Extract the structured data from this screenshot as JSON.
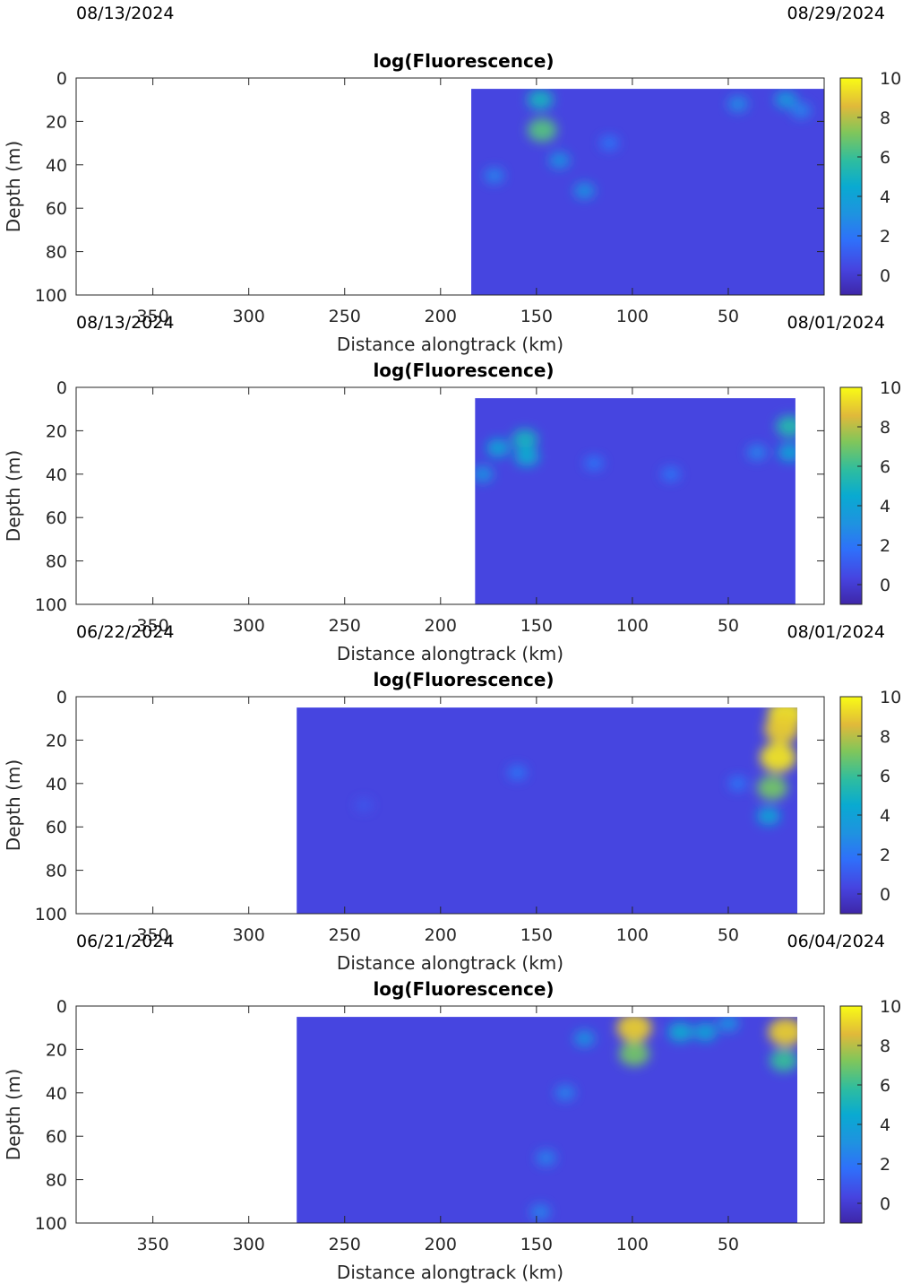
{
  "chart_data": [
    {
      "type": "heatmap",
      "title": "log(Fluorescence)",
      "date_left": "08/13/2024",
      "date_right": "08/29/2024",
      "xlabel": "Distance alongtrack (km)",
      "ylabel": "Depth (m)",
      "xlim": [
        390,
        0
      ],
      "ylim": [
        0,
        100
      ],
      "x_reversed": true,
      "y_reversed": true,
      "xticks": [
        "350",
        "300",
        "250",
        "200",
        "150",
        "100",
        "50"
      ],
      "yticks": [
        "0",
        "20",
        "40",
        "60",
        "80",
        "100"
      ],
      "colorbar": {
        "range": [
          -1,
          10
        ],
        "ticks": [
          "0",
          "2",
          "4",
          "6",
          "8",
          "10"
        ]
      },
      "data_extent": {
        "x": [
          184,
          0
        ],
        "depth": [
          5,
          100
        ]
      },
      "features": [
        {
          "x": 148,
          "depth": 10,
          "value": 5
        },
        {
          "x": 147,
          "depth": 24,
          "value": 6.5
        },
        {
          "x": 138,
          "depth": 38,
          "value": 3
        },
        {
          "x": 125,
          "depth": 52,
          "value": 3
        },
        {
          "x": 172,
          "depth": 45,
          "value": 2.5
        },
        {
          "x": 112,
          "depth": 30,
          "value": 2
        },
        {
          "x": 45,
          "depth": 12,
          "value": 2.8
        },
        {
          "x": 20,
          "depth": 10,
          "value": 3.5
        },
        {
          "x": 12,
          "depth": 15,
          "value": 2.5
        }
      ]
    },
    {
      "type": "heatmap",
      "title": "log(Fluorescence)",
      "date_left": "08/13/2024",
      "date_right": "08/01/2024",
      "xlabel": "Distance alongtrack (km)",
      "ylabel": "Depth (m)",
      "xlim": [
        390,
        0
      ],
      "ylim": [
        0,
        100
      ],
      "x_reversed": true,
      "y_reversed": true,
      "xticks": [
        "350",
        "300",
        "250",
        "200",
        "150",
        "100",
        "50"
      ],
      "yticks": [
        "0",
        "20",
        "40",
        "60",
        "80",
        "100"
      ],
      "colorbar": {
        "range": [
          -1,
          10
        ],
        "ticks": [
          "0",
          "2",
          "4",
          "6",
          "8",
          "10"
        ]
      },
      "data_extent": {
        "x": [
          182,
          15
        ],
        "depth": [
          5,
          100
        ]
      },
      "features": [
        {
          "x": 156,
          "depth": 24,
          "value": 5
        },
        {
          "x": 155,
          "depth": 32,
          "value": 4.5
        },
        {
          "x": 170,
          "depth": 28,
          "value": 4
        },
        {
          "x": 178,
          "depth": 40,
          "value": 3
        },
        {
          "x": 18,
          "depth": 18,
          "value": 5.5
        },
        {
          "x": 18,
          "depth": 30,
          "value": 4
        },
        {
          "x": 120,
          "depth": 35,
          "value": 2
        },
        {
          "x": 80,
          "depth": 40,
          "value": 2
        },
        {
          "x": 35,
          "depth": 30,
          "value": 2.5
        }
      ]
    },
    {
      "type": "heatmap",
      "title": "log(Fluorescence)",
      "date_left": "06/22/2024",
      "date_right": "08/01/2024",
      "xlabel": "Distance alongtrack (km)",
      "ylabel": "Depth (m)",
      "xlim": [
        390,
        0
      ],
      "ylim": [
        0,
        100
      ],
      "x_reversed": true,
      "y_reversed": true,
      "xticks": [
        "350",
        "300",
        "250",
        "200",
        "150",
        "100",
        "50"
      ],
      "yticks": [
        "0",
        "20",
        "40",
        "60",
        "80",
        "100"
      ],
      "colorbar": {
        "range": [
          -1,
          10
        ],
        "ticks": [
          "0",
          "2",
          "4",
          "6",
          "8",
          "10"
        ]
      },
      "data_extent": {
        "x": [
          275,
          14
        ],
        "depth": [
          5,
          100
        ]
      },
      "features": [
        {
          "x": 20,
          "depth": 8,
          "value": 9.5
        },
        {
          "x": 22,
          "depth": 15,
          "value": 9
        },
        {
          "x": 24,
          "depth": 28,
          "value": 9.5
        },
        {
          "x": 27,
          "depth": 42,
          "value": 7
        },
        {
          "x": 29,
          "depth": 55,
          "value": 4
        },
        {
          "x": 160,
          "depth": 35,
          "value": 2
        },
        {
          "x": 45,
          "depth": 40,
          "value": 2
        },
        {
          "x": 240,
          "depth": 50,
          "value": 1
        }
      ]
    },
    {
      "type": "heatmap",
      "title": "log(Fluorescence)",
      "date_left": "06/21/2024",
      "date_right": "06/04/2024",
      "xlabel": "Distance alongtrack (km)",
      "ylabel": "Depth (m)",
      "xlim": [
        390,
        0
      ],
      "ylim": [
        0,
        100
      ],
      "x_reversed": true,
      "y_reversed": true,
      "xticks": [
        "350",
        "300",
        "250",
        "200",
        "150",
        "100",
        "50"
      ],
      "yticks": [
        "0",
        "20",
        "40",
        "60",
        "80",
        "100"
      ],
      "colorbar": {
        "range": [
          -1,
          10
        ],
        "ticks": [
          "0",
          "2",
          "4",
          "6",
          "8",
          "10"
        ]
      },
      "data_extent": {
        "x": [
          275,
          14
        ],
        "depth": [
          5,
          100
        ]
      },
      "features": [
        {
          "x": 99,
          "depth": 10,
          "value": 9
        },
        {
          "x": 99,
          "depth": 22,
          "value": 7
        },
        {
          "x": 20,
          "depth": 12,
          "value": 9
        },
        {
          "x": 21,
          "depth": 25,
          "value": 6
        },
        {
          "x": 75,
          "depth": 12,
          "value": 4.5
        },
        {
          "x": 62,
          "depth": 12,
          "value": 4
        },
        {
          "x": 125,
          "depth": 15,
          "value": 3
        },
        {
          "x": 135,
          "depth": 40,
          "value": 2.5
        },
        {
          "x": 145,
          "depth": 70,
          "value": 2.5
        },
        {
          "x": 148,
          "depth": 95,
          "value": 2.5
        },
        {
          "x": 50,
          "depth": 8,
          "value": 3
        }
      ]
    }
  ]
}
